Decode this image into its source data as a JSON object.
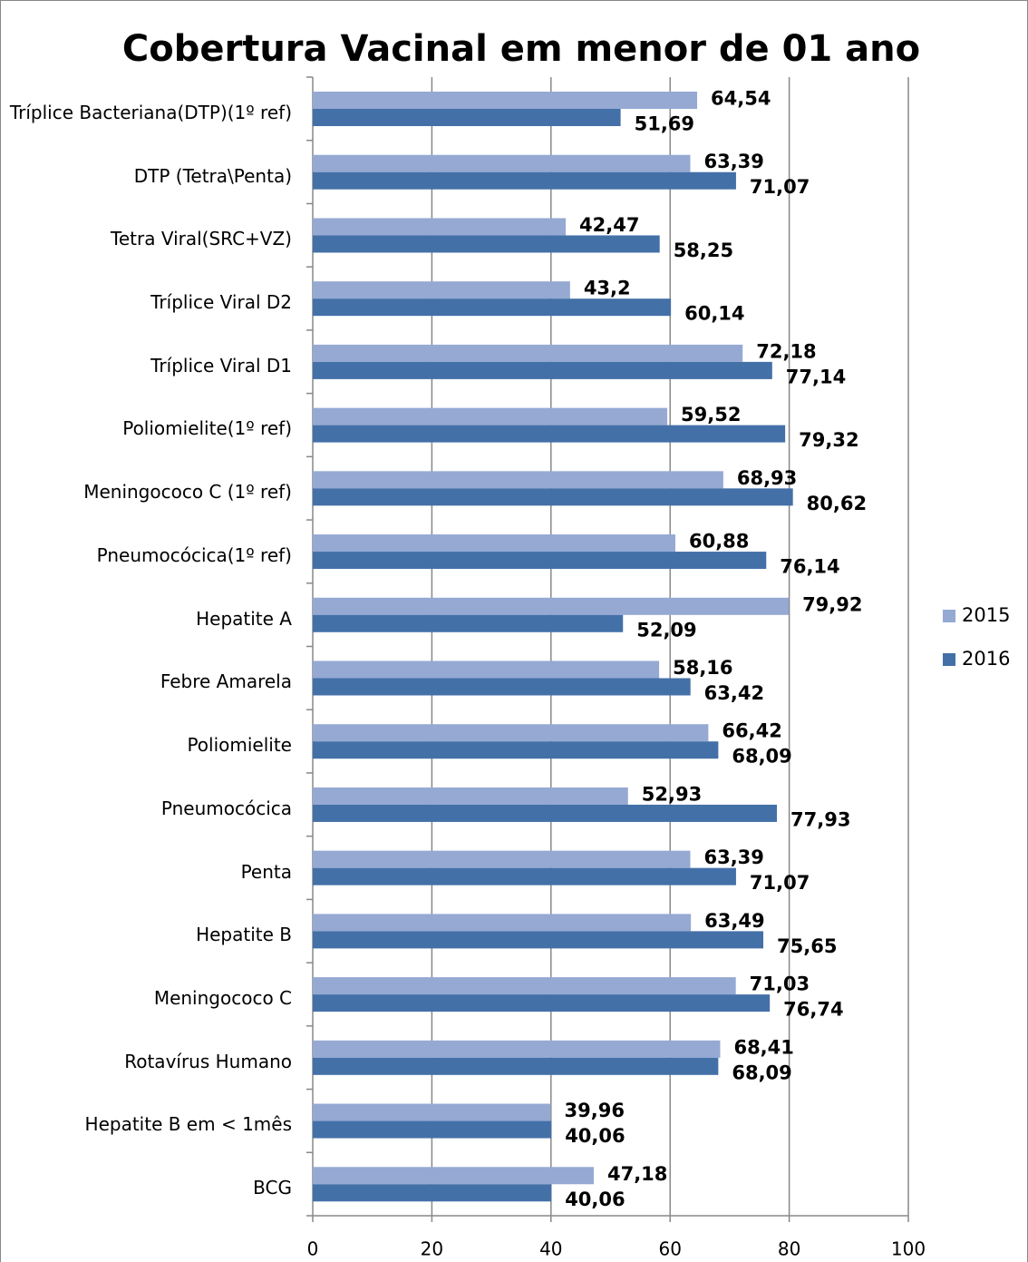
{
  "chart_data": {
    "type": "bar",
    "orientation": "horizontal",
    "title": "Cobertura Vacinal em menor de 01 ano",
    "categories": [
      "Tríplice Bacteriana(DTP)(1º ref)",
      "DTP (Tetra\\Penta)",
      "Tetra Viral(SRC+VZ)",
      "Tríplice Viral  D2",
      "Tríplice Viral  D1",
      "Poliomielite(1º ref)",
      "Meningococo C (1º ref)",
      "Pneumocócica(1º ref)",
      "Hepatite A",
      "Febre Amarela",
      "Poliomielite",
      "Pneumocócica",
      "Penta",
      "Hepatite B",
      "Meningococo C",
      "Rotavírus Humano",
      "Hepatite B  em < 1mês",
      "BCG"
    ],
    "series": [
      {
        "name": "2015",
        "color": "#95a9d3",
        "values": [
          64.54,
          63.39,
          42.47,
          43.2,
          72.18,
          59.52,
          68.93,
          60.88,
          79.92,
          58.16,
          66.42,
          52.93,
          63.39,
          63.49,
          71.03,
          68.41,
          39.96,
          47.18
        ],
        "value_labels": [
          "64,54",
          "63,39",
          "42,47",
          "43,2",
          "72,18",
          "59,52",
          "68,93",
          "60,88",
          "79,92",
          "58,16",
          "66,42",
          "52,93",
          "63,39",
          "63,49",
          "71,03",
          "68,41",
          "39,96",
          "47,18"
        ]
      },
      {
        "name": "2016",
        "color": "#4470a8",
        "values": [
          51.69,
          71.07,
          58.25,
          60.14,
          77.14,
          79.32,
          80.62,
          76.14,
          52.09,
          63.42,
          68.09,
          77.93,
          71.07,
          75.65,
          76.74,
          68.09,
          40.06,
          40.06
        ],
        "value_labels": [
          "51,69",
          "71,07",
          "58,25",
          "60,14",
          "77,14",
          "79,32",
          "80,62",
          "76,14",
          "52,09",
          "63,42",
          "68,09",
          "77,93",
          "71,07",
          "75,65",
          "76,74",
          "68,09",
          "40,06",
          "40,06"
        ]
      }
    ],
    "xlim": [
      0,
      100
    ],
    "xticks": [
      0,
      20,
      40,
      60,
      80,
      100
    ],
    "grid": true,
    "legend": "right"
  }
}
